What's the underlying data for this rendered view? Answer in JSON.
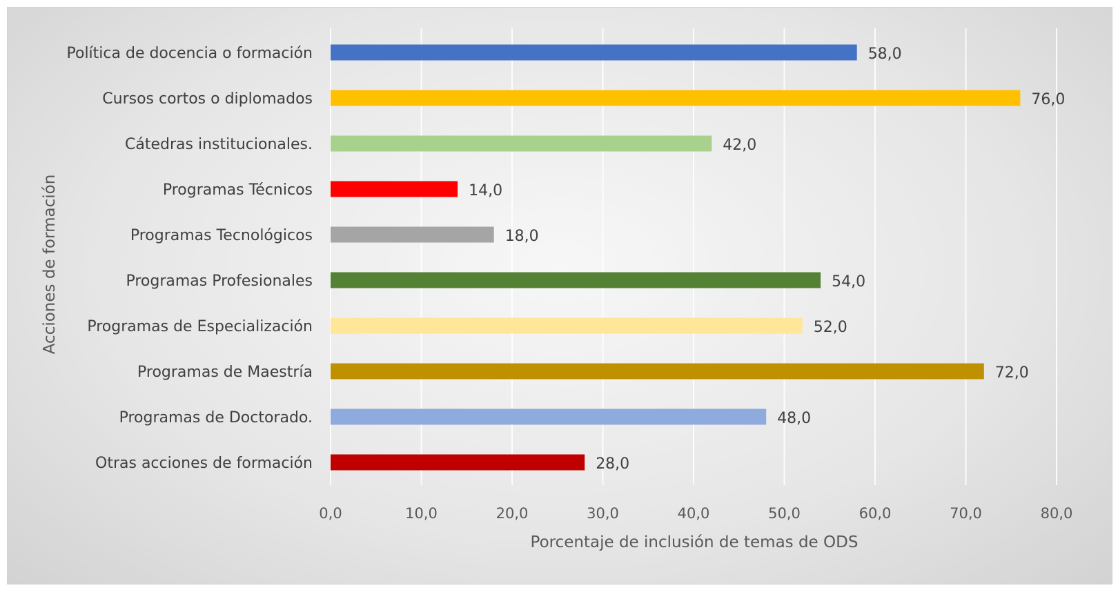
{
  "chart_data": {
    "type": "bar",
    "orientation": "horizontal",
    "categories": [
      "Política de docencia o formación",
      "Cursos cortos o diplomados",
      "Cátedras institucionales.",
      "Programas Técnicos",
      "Programas Tecnológicos",
      "Programas Profesionales",
      "Programas de Especialización",
      "Programas de Maestría",
      "Programas de Doctorado.",
      "Otras acciones de formación"
    ],
    "values": [
      58.0,
      76.0,
      42.0,
      14.0,
      18.0,
      54.0,
      52.0,
      72.0,
      48.0,
      28.0
    ],
    "data_labels": [
      "58,0",
      "76,0",
      "42,0",
      "14,0",
      "18,0",
      "54,0",
      "52,0",
      "72,0",
      "48,0",
      "28,0"
    ],
    "colors": [
      "#4472C4",
      "#FFC000",
      "#A9D18E",
      "#FF0000",
      "#A5A5A5",
      "#548235",
      "#FFE699",
      "#BF9000",
      "#8FAADC",
      "#C00000"
    ],
    "title": "",
    "xlabel": "Porcentaje de inclusión de temas de ODS",
    "ylabel": "Acciones de formación",
    "xlim": [
      0,
      80
    ],
    "xticks": [
      0,
      10,
      20,
      30,
      40,
      50,
      60,
      70,
      80
    ],
    "xtick_labels": [
      "0,0",
      "10,0",
      "20,0",
      "30,0",
      "40,0",
      "50,0",
      "60,0",
      "70,0",
      "80,0"
    ],
    "grid": true,
    "legend": "none"
  }
}
